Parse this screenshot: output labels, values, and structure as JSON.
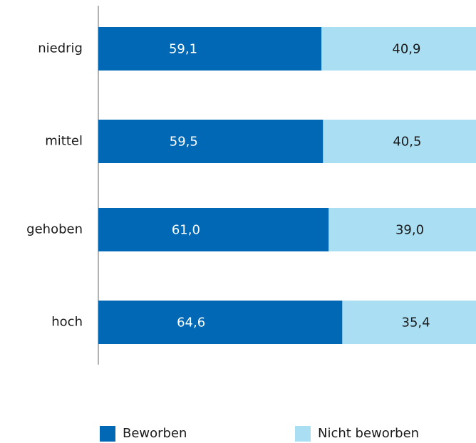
{
  "chart_data": {
    "type": "stacked-barh",
    "categories": [
      "niedrig",
      "mittel",
      "gehoben",
      "hoch"
    ],
    "series": [
      {
        "name": "Beworben",
        "color": "#0068b4",
        "values": [
          59.1,
          59.5,
          61.0,
          64.6
        ],
        "value_labels": [
          "59,1",
          "59,5",
          "61,0",
          "64,6"
        ]
      },
      {
        "name": "Nicht beworben",
        "color": "#a9def3",
        "values": [
          40.9,
          40.5,
          39.0,
          35.4
        ],
        "value_labels": [
          "40,9",
          "40,5",
          "39,0",
          "35,4"
        ]
      }
    ],
    "xlim": [
      0,
      100
    ],
    "legend": "bottom"
  }
}
